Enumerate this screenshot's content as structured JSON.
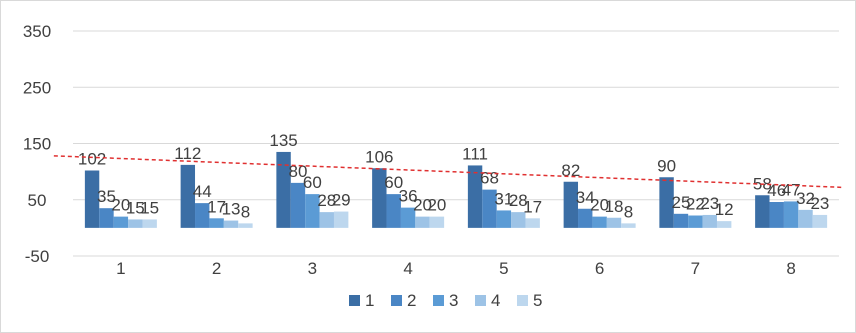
{
  "chart_data": {
    "type": "bar",
    "categories": [
      "1",
      "2",
      "3",
      "4",
      "5",
      "6",
      "7",
      "8"
    ],
    "series": [
      {
        "name": "1",
        "values": [
          102,
          112,
          135,
          106,
          111,
          82,
          90,
          58
        ],
        "color": "#3b6ea5"
      },
      {
        "name": "2",
        "values": [
          35,
          44,
          80,
          60,
          68,
          34,
          25,
          46
        ],
        "color": "#4a86c5"
      },
      {
        "name": "3",
        "values": [
          20,
          17,
          60,
          36,
          31,
          20,
          22,
          47
        ],
        "color": "#5b9bd5"
      },
      {
        "name": "4",
        "values": [
          15,
          13,
          28,
          20,
          28,
          18,
          23,
          32
        ],
        "color": "#9dc3e6"
      },
      {
        "name": "5",
        "values": [
          15,
          8,
          29,
          20,
          17,
          8,
          12,
          23
        ],
        "color": "#bdd7ee"
      }
    ],
    "yticks": [
      "350",
      "250",
      "150",
      "50",
      "-50"
    ],
    "ylim": [
      -50,
      350
    ],
    "grid": true,
    "legend": "bottom",
    "trendline": {
      "series": "1",
      "style": "dashed",
      "color": "#e03030"
    }
  }
}
